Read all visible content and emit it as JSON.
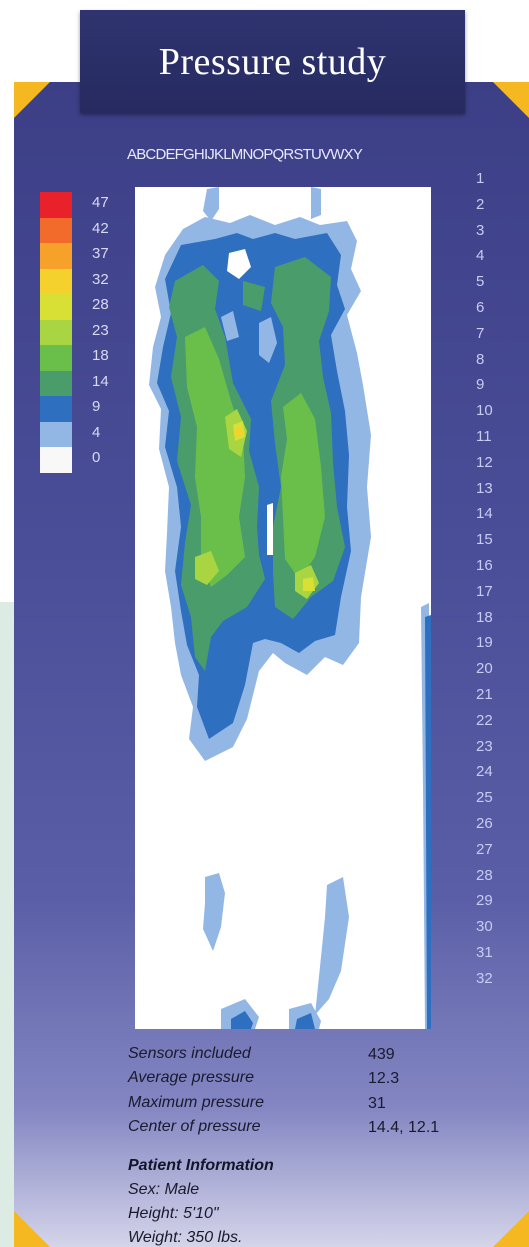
{
  "title": "Pressure study",
  "column_letters": "ABCDEFGHIJKLMNOPQRSTUVWXY",
  "scale": {
    "labels": [
      "47",
      "42",
      "37",
      "32",
      "28",
      "23",
      "18",
      "14",
      "9",
      "4",
      "0"
    ],
    "colors": [
      "#e8212b",
      "#f26b2a",
      "#f6a12a",
      "#f4d12c",
      "#d8e035",
      "#a9d542",
      "#6abf4b",
      "#4a9d6a",
      "#2f6fc0",
      "#93b7e4",
      "#f8f8f8"
    ]
  },
  "chart_data": {
    "type": "heatmap",
    "title": "Pressure study",
    "x_categories": [
      "A",
      "B",
      "C",
      "D",
      "E",
      "F",
      "G",
      "H",
      "I",
      "J",
      "K",
      "L",
      "M",
      "N",
      "O",
      "P",
      "Q",
      "R",
      "S",
      "T",
      "U",
      "V",
      "W",
      "X",
      "Y"
    ],
    "y_categories": [
      1,
      2,
      3,
      4,
      5,
      6,
      7,
      8,
      9,
      10,
      11,
      12,
      13,
      14,
      15,
      16,
      17,
      18,
      19,
      20,
      21,
      22,
      23,
      24,
      25,
      26,
      27,
      28,
      29,
      30,
      31,
      32
    ],
    "color_scale": [
      0,
      4,
      9,
      14,
      18,
      23,
      28,
      32,
      37,
      42,
      47
    ],
    "regions": [
      {
        "level": 4,
        "color": "#93b7e4"
      },
      {
        "level": 9,
        "color": "#2f6fc0"
      },
      {
        "level": 14,
        "color": "#4a9d6a"
      },
      {
        "level": 18,
        "color": "#6abf4b"
      },
      {
        "level": 23,
        "color": "#a9d542"
      },
      {
        "level": 28,
        "color": "#d8e035"
      },
      {
        "level": 32,
        "color": "#f4d12c"
      }
    ],
    "rows": [
      "1",
      "2",
      "3",
      "4",
      "5",
      "6",
      "7",
      "8",
      "9",
      "10",
      "11",
      "12",
      "13",
      "14",
      "15",
      "16",
      "17",
      "18",
      "19",
      "20",
      "21",
      "22",
      "23",
      "24",
      "25",
      "26",
      "27",
      "28",
      "29",
      "30",
      "31",
      "32"
    ]
  },
  "stats": [
    {
      "label": "Sensors included",
      "value": "439"
    },
    {
      "label": "Average pressure",
      "value": "12.3"
    },
    {
      "label": "Maximum pressure",
      "value": "31"
    },
    {
      "label": "Center of pressure",
      "value": "14.4, 12.1"
    }
  ],
  "patient": {
    "title": "Patient Information",
    "sex": "Sex: Male",
    "height": "Height: 5'10\"",
    "weight": "Weight: 350 lbs."
  }
}
